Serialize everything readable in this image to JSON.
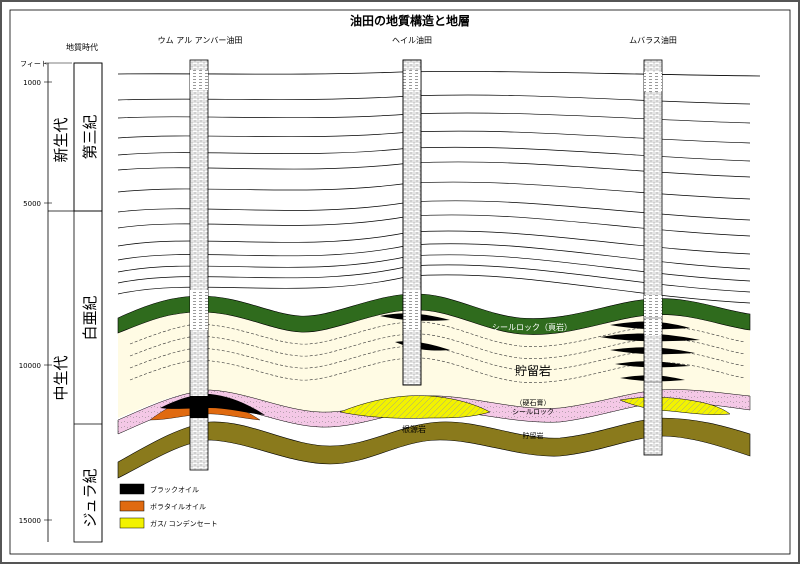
{
  "title": "油田の地質構造と地層",
  "axis": {
    "header_geo_time": "地質時代",
    "unit": "フィート",
    "ticks": [
      "1000",
      "5000",
      "10000",
      "15000"
    ]
  },
  "eras": {
    "cenozoic": "新生代",
    "mesozoic": "中生代"
  },
  "periods": {
    "tertiary": "第三紀",
    "cretaceous": "白亜紀",
    "jurassic": "ジュラ紀"
  },
  "wells": [
    {
      "name": "ウム アル アンバー油田"
    },
    {
      "name": "ヘイル油田"
    },
    {
      "name": "ムバラス油田"
    }
  ],
  "annotations": {
    "seal_shale": "シールロック（頁岩）",
    "reservoir_main": "貯留岩",
    "anhydrite": "（硬石膏）",
    "seal_rock": "シールロック",
    "source_rock": "根源岩",
    "reservoir_lower": "貯留岩"
  },
  "legend": [
    {
      "label": "ブラックオイル",
      "color": "#000000"
    },
    {
      "label": "ボラタイルオイル",
      "color": "#e06a10"
    },
    {
      "label": "ガス/ コンデンセート",
      "color": "#f2f200"
    }
  ],
  "colors": {
    "seal_green": "#2f6b1d",
    "reservoir_cream": "#fffbe4",
    "pink_layer": "#f4c8e6",
    "source_brown": "#8a7a1c",
    "gas_yellow": "#f2f200"
  }
}
